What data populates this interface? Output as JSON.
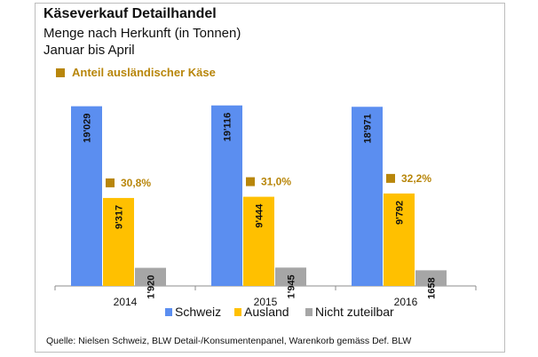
{
  "chart_data": {
    "type": "bar",
    "title": "Käseverkauf Detailhandel",
    "subtitle_lines": [
      "Menge nach Herkunft (in Tonnen)",
      "Januar bis April"
    ],
    "categories": [
      "2014",
      "2015",
      "2016"
    ],
    "series": [
      {
        "name": "Schweiz",
        "color": "#5b8ef0",
        "values": [
          19029,
          19116,
          18971
        ],
        "labels": [
          "19'029",
          "19'116",
          "18'971"
        ]
      },
      {
        "name": "Ausland",
        "color": "#ffc000",
        "values": [
          9317,
          9444,
          9792
        ],
        "labels": [
          "9'317",
          "9'444",
          "9'792"
        ]
      },
      {
        "name": "Nicht zuteilbar",
        "color": "#a6a6a6",
        "values": [
          1920,
          1945,
          1658
        ],
        "labels": [
          "1'920",
          "1'945",
          "1658"
        ]
      }
    ],
    "share": {
      "legend_label": "Anteil ausländischer Käse",
      "color": "#b8860b",
      "values": [
        "30,8%",
        "31,0%",
        "32,2%"
      ]
    },
    "ylim": [
      0,
      20500
    ],
    "xlabel": "",
    "ylabel": "",
    "grid": false,
    "legend_position": "bottom",
    "source": "Quelle: Nielsen Schweiz, BLW Detail-/Konsumentenpanel, Warenkorb gemäss Def. BLW"
  }
}
